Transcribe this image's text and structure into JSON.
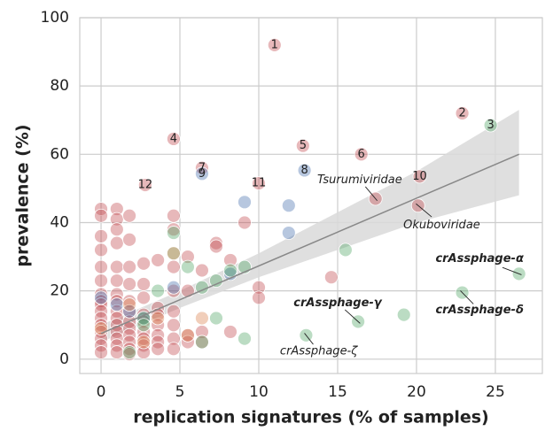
{
  "chart_data": {
    "type": "scatter",
    "x_label": "replication signatures (% of samples)",
    "y_label": "prevalence (%)",
    "xlim": [
      -1.35,
      27.98
    ],
    "ylim": [
      -4.2,
      100
    ],
    "xticks": [
      0,
      5,
      10,
      15,
      20,
      25
    ],
    "yticks": [
      0,
      20,
      40,
      60,
      80,
      100
    ],
    "grid": true,
    "series": [
      {
        "color": "#c44e52",
        "x": [
          0,
          0,
          0,
          0,
          0,
          0,
          0,
          0,
          0,
          0,
          0,
          0,
          0,
          0,
          0,
          0,
          1,
          1,
          1,
          1,
          1,
          1,
          1,
          1,
          1,
          1,
          1,
          1,
          1,
          1,
          1,
          1.8,
          1.8,
          1.8,
          1.8,
          1.8,
          1.8,
          1.8,
          1.8,
          1.8,
          1.8,
          1.8,
          1.8,
          2.7,
          2.7,
          2.7,
          2.7,
          2.7,
          2.7,
          2.7,
          2.7,
          2.7,
          3.6,
          3.6,
          3.6,
          3.6,
          3.6,
          3.6,
          3.6,
          4.6,
          4.6,
          4.6,
          4.6,
          4.6,
          4.6,
          4.6,
          4.6,
          5.5,
          5.5,
          5.5,
          5.5,
          6.4,
          6.4,
          6.4,
          7.3,
          7.3,
          8.2,
          8.2,
          9.1,
          10,
          10,
          14.6,
          17.4,
          20.1,
          11,
          22.9,
          4.6,
          12.8,
          16.5,
          6.4,
          20.2,
          10,
          2.8
        ],
        "y": [
          44,
          42,
          36,
          32,
          27,
          23,
          19,
          17,
          16,
          14,
          12,
          10,
          8,
          6,
          4,
          2,
          44,
          41,
          38,
          34,
          27,
          23,
          19,
          17,
          14,
          12,
          10,
          8,
          6,
          4,
          2,
          42,
          35,
          27,
          22,
          17,
          14,
          11,
          9,
          7,
          5,
          3,
          1.5,
          28,
          22,
          18,
          13,
          11,
          8,
          6,
          4,
          2,
          29,
          15,
          13,
          10,
          7,
          5,
          3,
          42,
          38,
          27,
          20,
          14,
          10,
          6,
          3,
          30,
          20,
          7,
          5,
          26,
          8,
          5,
          34,
          33,
          29,
          8,
          40,
          21,
          18,
          24,
          47,
          45,
          92,
          72,
          64.5,
          62.5,
          60,
          56,
          53.5,
          51.5,
          51
        ]
      },
      {
        "color": "#4c72b0",
        "x": [
          9.1,
          11.9,
          11.9,
          4.6,
          8.2,
          0,
          1,
          2.7,
          1.8,
          12.9,
          6.4
        ],
        "y": [
          46,
          45,
          37,
          21,
          25,
          18,
          16,
          12,
          14,
          55.3,
          54.3
        ]
      },
      {
        "color": "#55a868",
        "x": [
          4.6,
          5.5,
          4.6,
          6.4,
          7.3,
          8.2,
          9.1,
          3.6,
          2.7,
          2.7,
          1.8,
          6.4,
          7.3,
          9.1,
          15.5,
          19.2,
          16.3,
          13,
          22.9,
          26.5,
          24.7
        ],
        "y": [
          37,
          27,
          31,
          21,
          23,
          26,
          27,
          20,
          12,
          10,
          2,
          5,
          12,
          6,
          32,
          13,
          11,
          7,
          19.5,
          25,
          68.5
        ]
      },
      {
        "color": "#dd8452",
        "x": [
          4.6,
          3.6,
          1.8,
          5.5,
          6.4,
          0,
          2.7
        ],
        "y": [
          31,
          12,
          16,
          7,
          12,
          9,
          5
        ]
      }
    ],
    "regression": {
      "color": "#888888",
      "x": [
        0,
        26.5
      ],
      "y": [
        7.5,
        60
      ]
    },
    "ci": {
      "color": "#d9d9d9",
      "x": [
        0,
        5,
        10,
        15,
        20,
        26.5
      ],
      "lower": [
        5,
        15,
        24,
        32,
        40,
        48
      ],
      "upper": [
        10,
        20,
        31,
        43,
        55,
        73
      ]
    },
    "point_labels": [
      {
        "text": "1",
        "x": 11,
        "y": 92
      },
      {
        "text": "2",
        "x": 22.9,
        "y": 72
      },
      {
        "text": "3",
        "x": 24.7,
        "y": 68.5
      },
      {
        "text": "4",
        "x": 4.6,
        "y": 64.5
      },
      {
        "text": "5",
        "x": 12.8,
        "y": 62.5
      },
      {
        "text": "6",
        "x": 16.5,
        "y": 60
      },
      {
        "text": "7",
        "x": 6.4,
        "y": 56
      },
      {
        "text": "8",
        "x": 12.9,
        "y": 55.3
      },
      {
        "text": "9",
        "x": 6.4,
        "y": 54.3
      },
      {
        "text": "10",
        "x": 20.2,
        "y": 53.5
      },
      {
        "text": "11",
        "x": 10,
        "y": 51.5
      },
      {
        "text": "12",
        "x": 2.8,
        "y": 51
      }
    ],
    "annotations": [
      {
        "text": "Tsurumiviridae",
        "xy": [
          17.4,
          47
        ],
        "xytext": [
          16.4,
          52.5
        ],
        "bold": false
      },
      {
        "text": "Okuboviridae",
        "xy": [
          20.1,
          45
        ],
        "xytext": [
          21.6,
          39.2
        ],
        "bold": false
      },
      {
        "text": "crAssphage-α",
        "xy": [
          26.5,
          25
        ],
        "xytext": [
          24.0,
          29.4
        ],
        "bold": true
      },
      {
        "text": "crAssphage-δ",
        "xy": [
          22.9,
          19.5
        ],
        "xytext": [
          24.0,
          14.3
        ],
        "bold": true
      },
      {
        "text": "crAssphage-γ",
        "xy": [
          16.3,
          11
        ],
        "xytext": [
          15.0,
          16.4
        ],
        "bold": true
      },
      {
        "text": "crAssphage-ζ",
        "xy": [
          13,
          7
        ],
        "xytext": [
          13.8,
          2.3
        ],
        "bold": false
      }
    ]
  }
}
